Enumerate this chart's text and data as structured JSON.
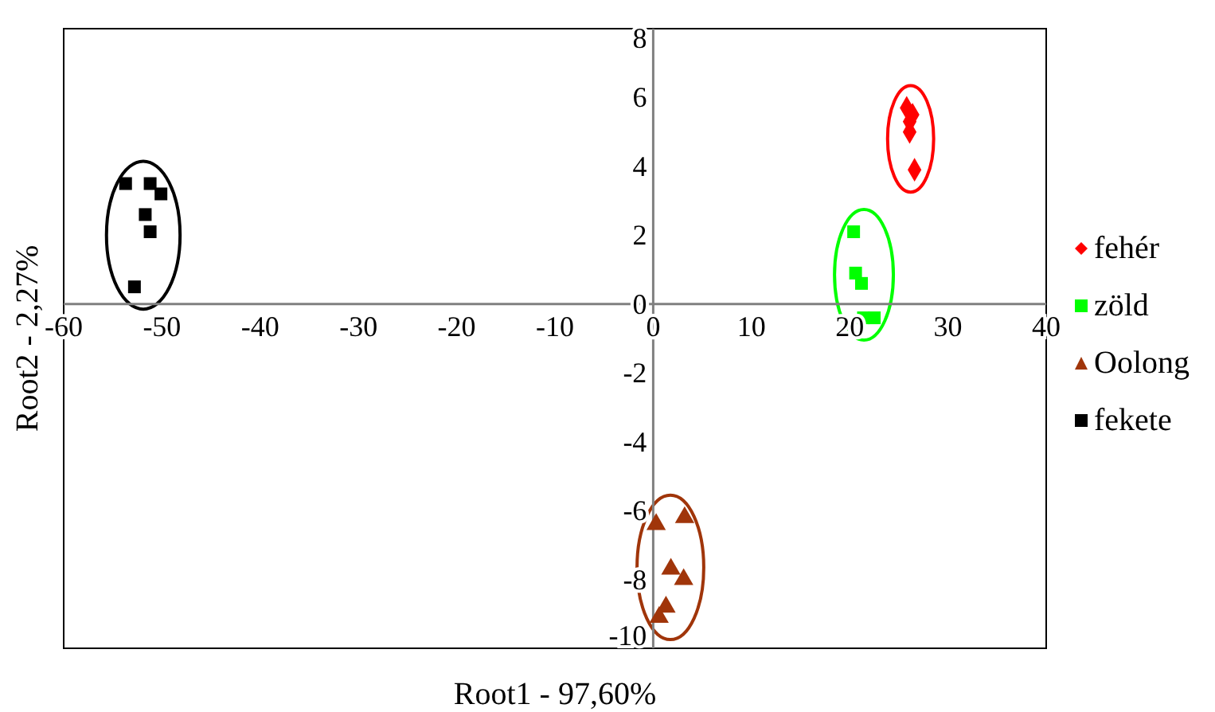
{
  "chart_data": {
    "type": "scatter",
    "xlabel": "Root1 - 97,60%",
    "ylabel": "Root2 - 2,27%",
    "xlim": [
      -60,
      40
    ],
    "xticks": [
      -60,
      -50,
      -40,
      -30,
      -20,
      -10,
      0,
      10,
      20,
      30,
      40
    ],
    "ylim": [
      -10,
      8
    ],
    "yticks": [
      -10,
      -8,
      -6,
      -4,
      -2,
      0,
      2,
      4,
      6,
      8
    ],
    "legend": "right",
    "series": [
      {
        "name": "fehér",
        "color": "#ff0000",
        "marker": "diamond",
        "x": [
          25.8,
          26.4,
          26.1,
          26.1,
          26.6
        ],
        "values": [
          5.7,
          5.5,
          5.3,
          5.0,
          3.9
        ]
      },
      {
        "name": "zöld",
        "color": "#00ff00",
        "marker": "square",
        "x": [
          20.4,
          20.6,
          21.2,
          21.4,
          22.5
        ],
        "values": [
          2.1,
          0.9,
          0.6,
          -0.4,
          -0.4
        ]
      },
      {
        "name": "Oolong",
        "color": "#a0350a",
        "marker": "triangle",
        "x": [
          0.3,
          3.2,
          1.8,
          3.1,
          1.3,
          0.6
        ],
        "values": [
          -6.4,
          -6.2,
          -7.7,
          -8.0,
          -8.8,
          -9.1
        ]
      },
      {
        "name": "fekete",
        "color": "#000000",
        "marker": "square",
        "x": [
          -53.7,
          -51.2,
          -50.1,
          -51.7,
          -51.2,
          -52.8
        ],
        "values": [
          3.5,
          3.5,
          3.2,
          2.6,
          2.1,
          0.5
        ]
      }
    ]
  }
}
